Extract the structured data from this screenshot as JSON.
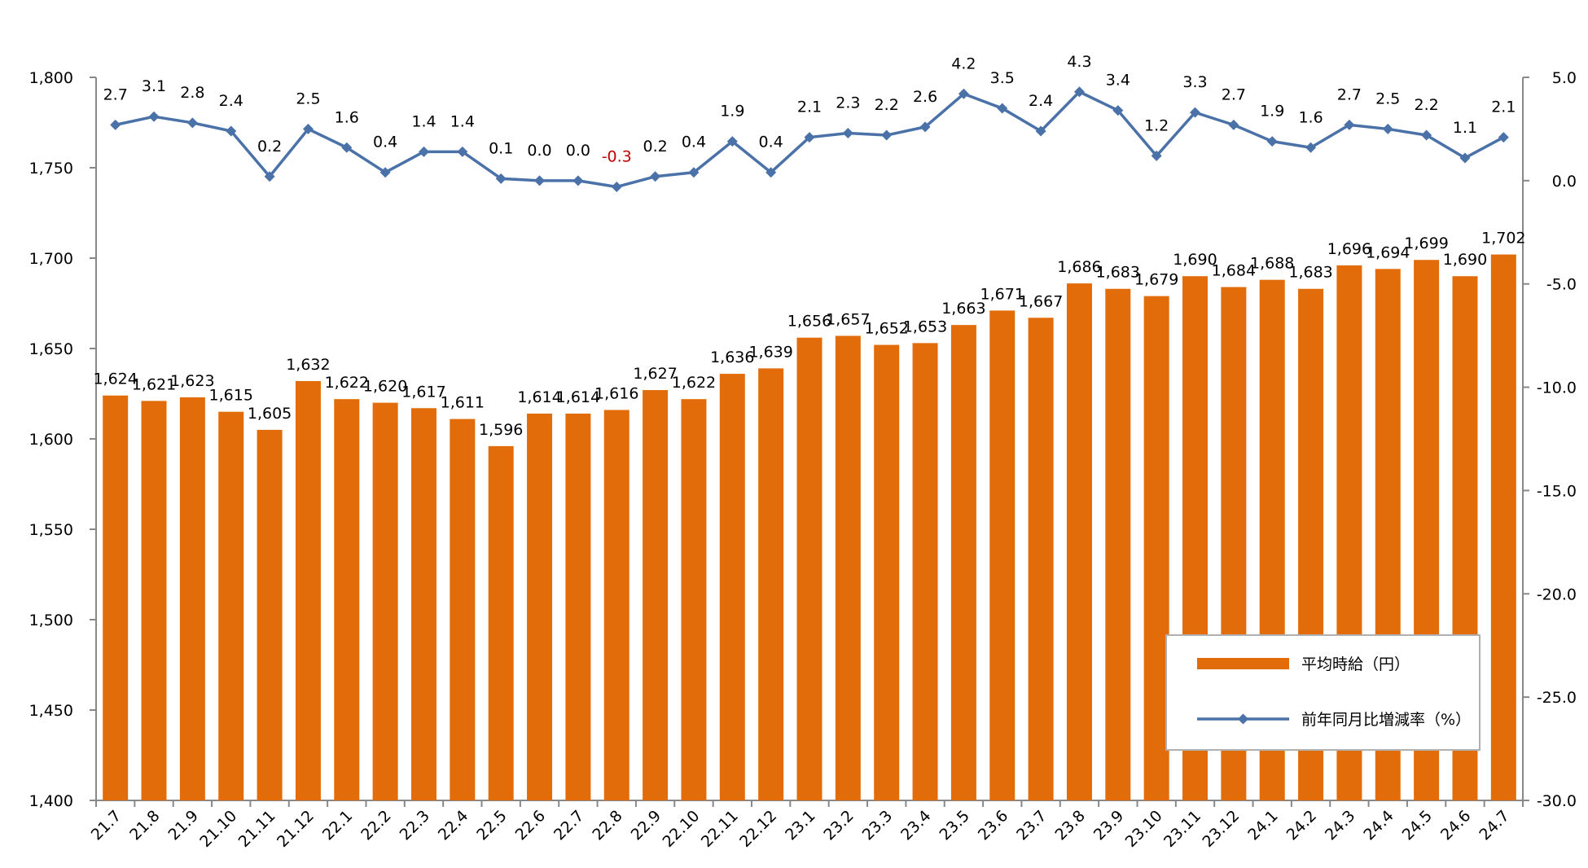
{
  "chart_data": {
    "type": "bar",
    "categories": [
      "21.7",
      "21.8",
      "21.9",
      "21.10",
      "21.11",
      "21.12",
      "22.1",
      "22.2",
      "22.3",
      "22.4",
      "22.5",
      "22.6",
      "22.7",
      "22.8",
      "22.9",
      "22.10",
      "22.11",
      "22.12",
      "23.1",
      "23.2",
      "23.3",
      "23.4",
      "23.5",
      "23.6",
      "23.7",
      "23.8",
      "23.9",
      "23.10",
      "23.11",
      "23.12",
      "24.1",
      "24.2",
      "24.3",
      "24.4",
      "24.5",
      "24.6",
      "24.7"
    ],
    "series": [
      {
        "name": "平均時給（円）",
        "type": "bar",
        "axis": "left",
        "values": [
          1624,
          1621,
          1623,
          1615,
          1605,
          1632,
          1622,
          1620,
          1617,
          1611,
          1596,
          1614,
          1614,
          1616,
          1627,
          1622,
          1636,
          1639,
          1656,
          1657,
          1652,
          1653,
          1663,
          1671,
          1667,
          1686,
          1683,
          1679,
          1690,
          1684,
          1688,
          1683,
          1696,
          1694,
          1699,
          1690,
          1702
        ]
      },
      {
        "name": "前年同月比増減率（%）",
        "type": "line",
        "axis": "right",
        "values": [
          2.7,
          3.1,
          2.8,
          2.4,
          0.2,
          2.5,
          1.6,
          0.4,
          1.4,
          1.4,
          0.1,
          0.0,
          0.0,
          -0.3,
          0.2,
          0.4,
          1.9,
          0.4,
          2.1,
          2.3,
          2.2,
          2.6,
          4.2,
          3.5,
          2.4,
          4.3,
          3.4,
          1.2,
          3.3,
          2.7,
          1.9,
          1.6,
          2.7,
          2.5,
          2.2,
          1.1,
          2.1
        ]
      }
    ],
    "y_left": {
      "min": 1400,
      "max": 1800,
      "step": 50
    },
    "y_right": {
      "min": -30.0,
      "max": 5.0,
      "step": 5.0
    },
    "colors": {
      "bar": "#e36c0a",
      "line": "#4a72a8",
      "negative_label": "#c00000",
      "axis": "#888888"
    },
    "legend": {
      "position": "bottom-right",
      "items": [
        "平均時給（円）",
        "前年同月比増減率（%）"
      ]
    },
    "grid": false
  }
}
